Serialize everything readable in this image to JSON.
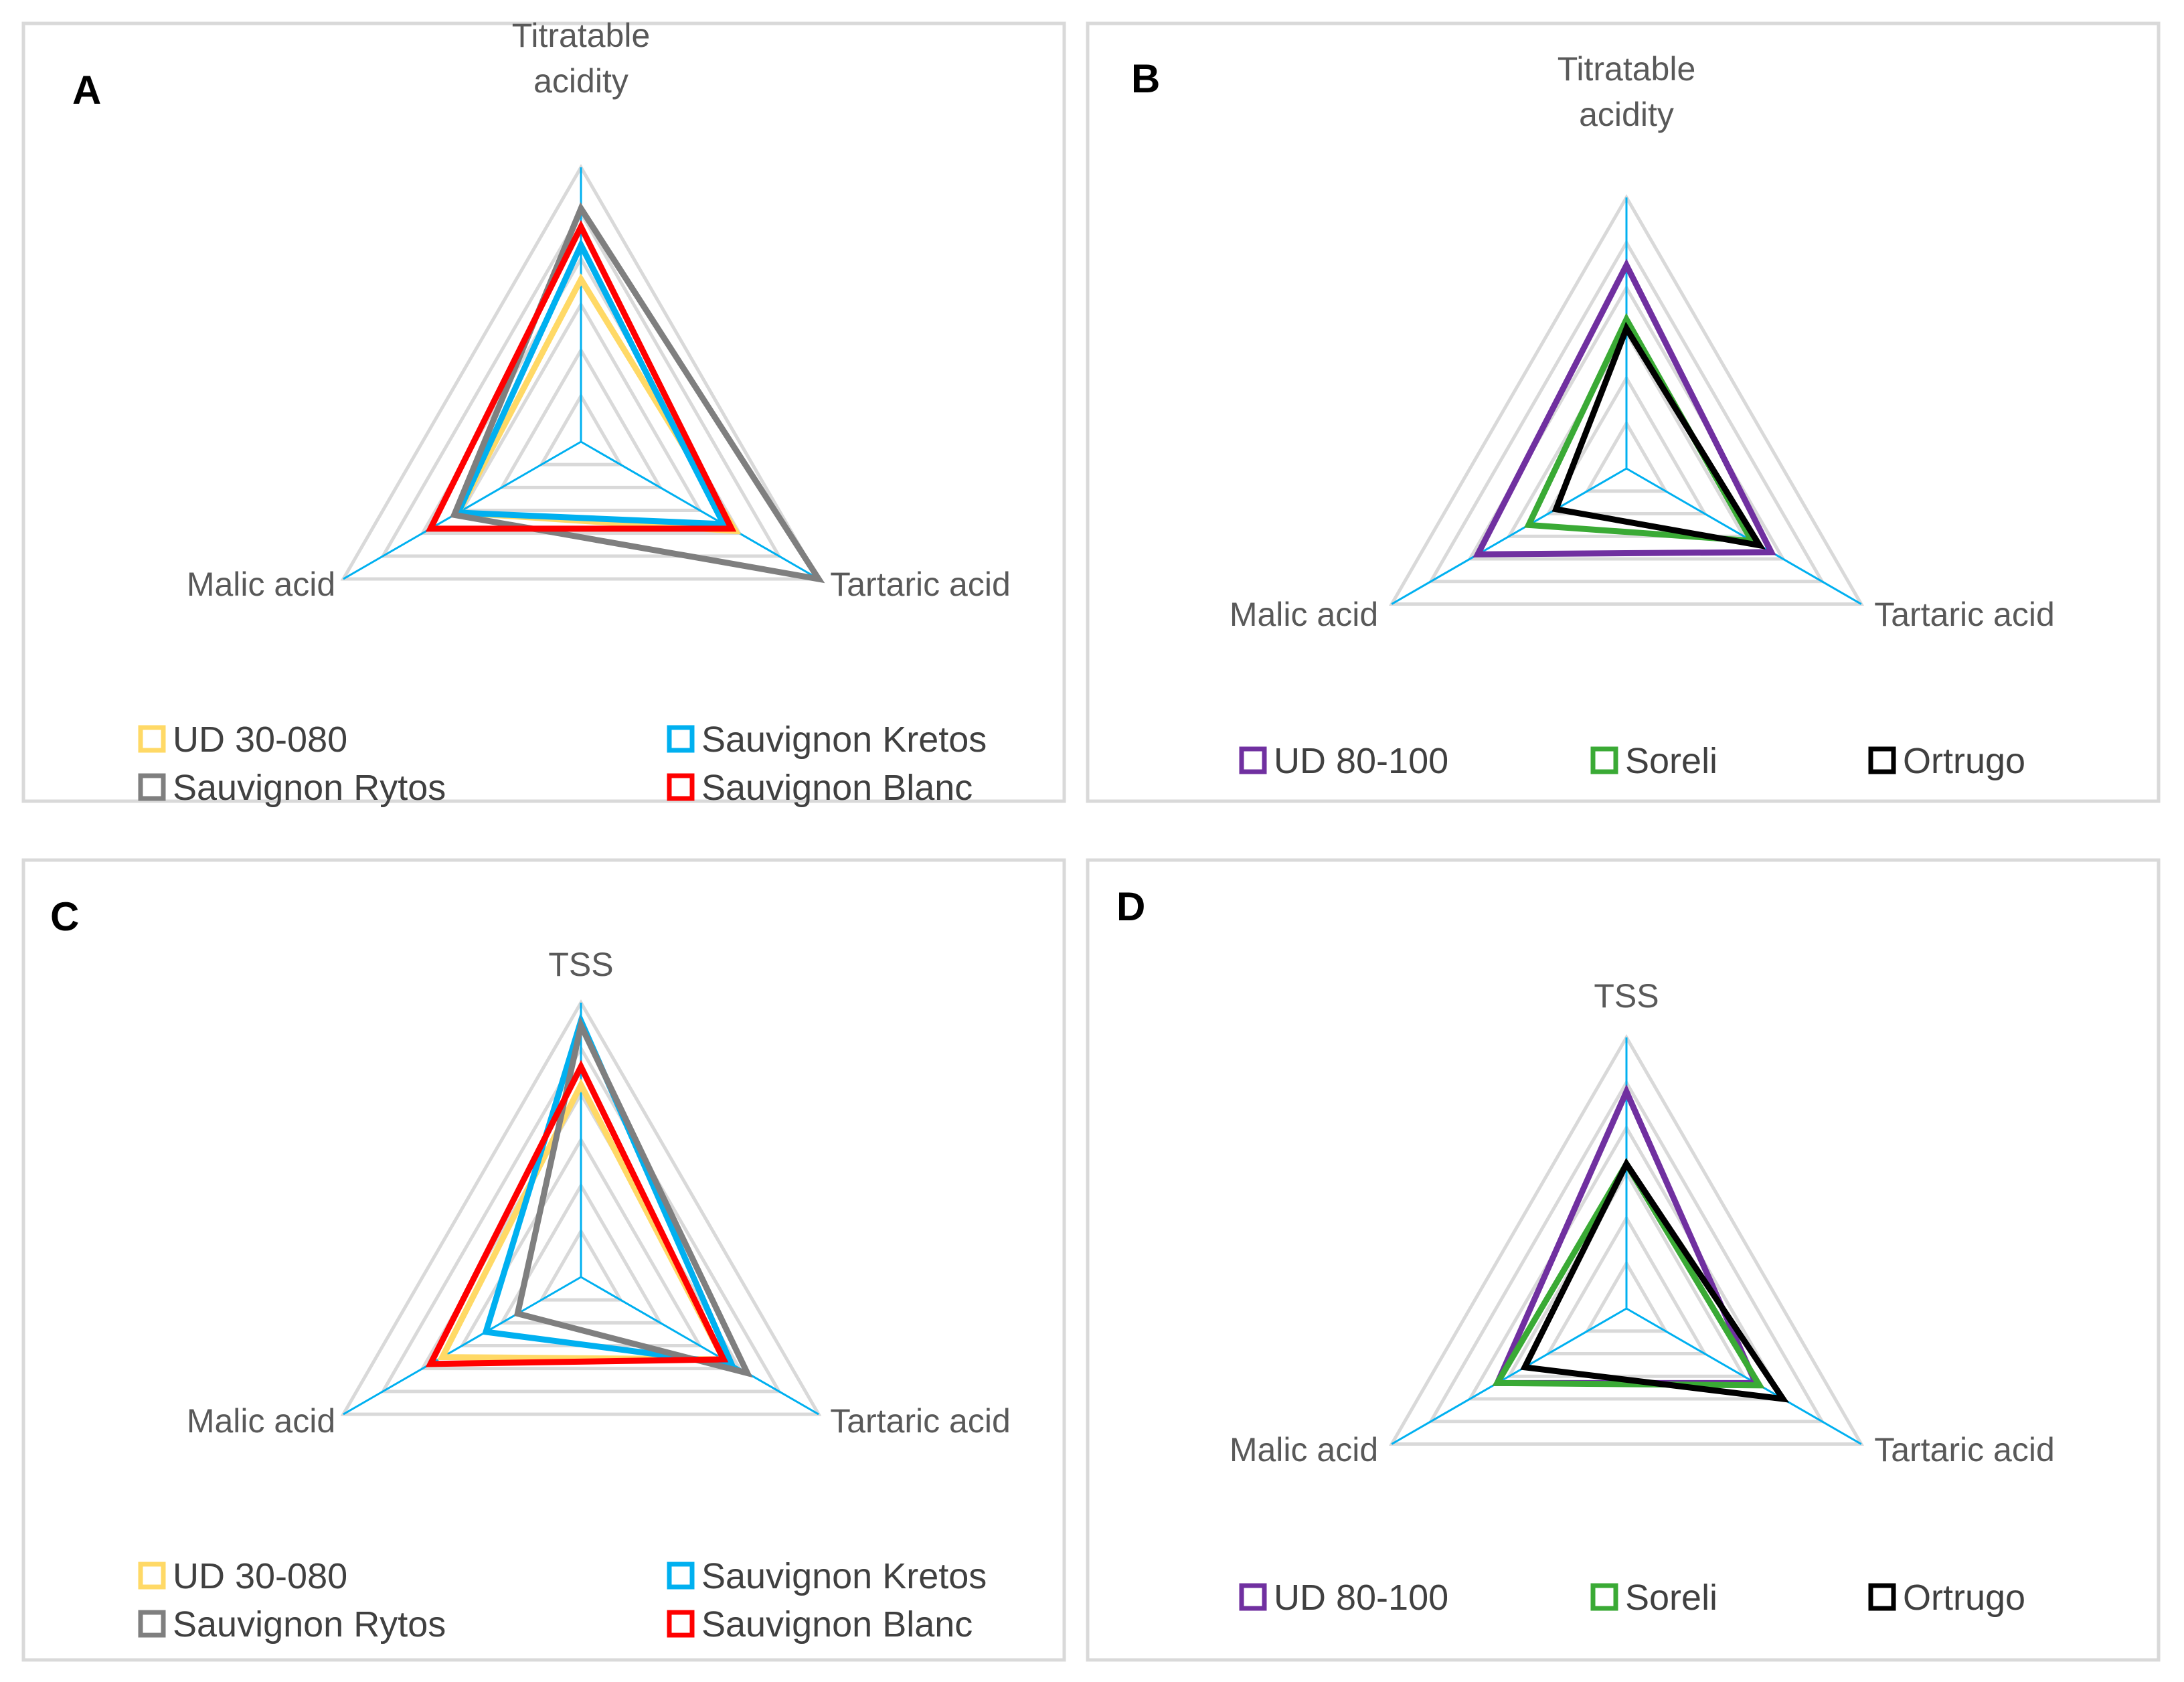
{
  "colors": {
    "UD 30-080": "#ffd966",
    "Sauvignon Kretos": "#00b0f0",
    "Sauvignon Rytos": "#7f7f7f",
    "Sauvignon Blanc": "#ff0000",
    "UD 80-100": "#7030a0",
    "Soreli": "#3aaa35",
    "Ortrugo": "#000000",
    "grid": "#d9d9d9",
    "spoke": "#00b0f0"
  },
  "chart_data": [
    {
      "panel": "A",
      "type": "radar",
      "axes": [
        "Titratable acidity",
        "Tartaric acid",
        "Malic acid"
      ],
      "range": [
        0,
        6
      ],
      "rings": 6,
      "series": [
        {
          "name": "UD 30-080",
          "values": [
            3.55,
            3.9,
            3.1
          ]
        },
        {
          "name": "Sauvignon Kretos",
          "values": [
            4.3,
            3.6,
            3.1
          ]
        },
        {
          "name": "Sauvignon Rytos",
          "values": [
            5.1,
            6.0,
            3.2
          ]
        },
        {
          "name": "Sauvignon Blanc",
          "values": [
            4.7,
            3.8,
            3.8
          ]
        }
      ],
      "legend": [
        "UD 30-080",
        "Sauvignon Kretos",
        "Sauvignon Rytos",
        "Sauvignon Blanc"
      ]
    },
    {
      "panel": "B",
      "type": "radar",
      "axes": [
        "Titratable acidity",
        "Tartaric acid",
        "Malic acid"
      ],
      "range": [
        0,
        6
      ],
      "rings": 6,
      "series": [
        {
          "name": "UD 80-100",
          "values": [
            4.5,
            3.7,
            3.8
          ]
        },
        {
          "name": "Soreli",
          "values": [
            3.3,
            3.2,
            2.5
          ]
        },
        {
          "name": "Ortrugo",
          "values": [
            3.1,
            3.4,
            1.8
          ]
        }
      ],
      "legend": [
        "UD 80-100",
        "Soreli",
        "Ortrugo"
      ]
    },
    {
      "panel": "C",
      "type": "radar",
      "axes": [
        "TSS",
        "Tartaric acid",
        "Malic acid"
      ],
      "range": [
        0,
        6
      ],
      "rings": 6,
      "series": [
        {
          "name": "UD 30-080",
          "values": [
            4.2,
            3.6,
            3.5
          ]
        },
        {
          "name": "Sauvignon Kretos",
          "values": [
            5.6,
            3.8,
            2.4
          ]
        },
        {
          "name": "Sauvignon Rytos",
          "values": [
            5.5,
            4.2,
            1.6
          ]
        },
        {
          "name": "Sauvignon Blanc",
          "values": [
            4.6,
            3.6,
            3.8
          ]
        }
      ],
      "legend": [
        "UD 30-080",
        "Sauvignon Kretos",
        "Sauvignon Rytos",
        "Sauvignon Blanc"
      ]
    },
    {
      "panel": "D",
      "type": "radar",
      "axes": [
        "TSS",
        "Tartaric acid",
        "Malic acid"
      ],
      "range": [
        0,
        6
      ],
      "rings": 6,
      "series": [
        {
          "name": "UD 80-100",
          "values": [
            4.8,
            3.3,
            3.3
          ]
        },
        {
          "name": "Soreli",
          "values": [
            3.2,
            3.4,
            3.3
          ]
        },
        {
          "name": "Ortrugo",
          "values": [
            3.2,
            4.0,
            2.6
          ]
        }
      ],
      "legend": [
        "UD 80-100",
        "Soreli",
        "Ortrugo"
      ]
    }
  ]
}
